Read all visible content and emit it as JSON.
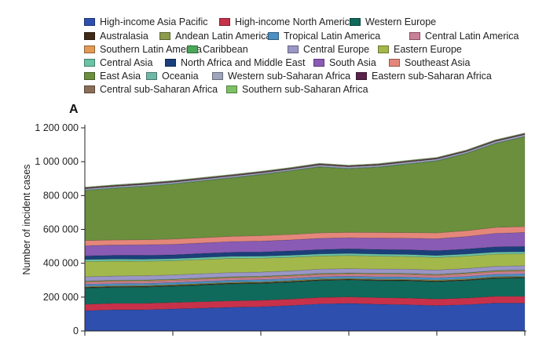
{
  "chart_data": {
    "type": "area",
    "stacked": true,
    "panel_label": "A",
    "ylabel": "Number of incident cases",
    "xlabel": "",
    "ylim": [
      0,
      1200000
    ],
    "yticks": [
      0,
      200000,
      400000,
      600000,
      800000,
      1000000,
      1200000
    ],
    "ytick_labels": [
      "0",
      "200 000",
      "400 000",
      "600 000",
      "800 000",
      "1 000 000",
      "1 200 000"
    ],
    "x_count": 16,
    "x_ticks_idx": [
      0,
      3,
      6,
      9,
      12,
      15
    ],
    "series": [
      {
        "name": "High-income Asia Pacific",
        "color": "#2e4fae",
        "values": [
          120000,
          125000,
          125000,
          130000,
          135000,
          140000,
          143000,
          150000,
          160000,
          163000,
          158000,
          155000,
          150000,
          155000,
          165000,
          165000
        ]
      },
      {
        "name": "High-income North America",
        "color": "#c8314a",
        "values": [
          38000,
          38000,
          38000,
          38000,
          38000,
          38000,
          38000,
          38000,
          38000,
          38000,
          39000,
          39000,
          39000,
          39000,
          40000,
          40000
        ]
      },
      {
        "name": "Western Europe",
        "color": "#0f6a5c",
        "values": [
          95000,
          95000,
          96000,
          96000,
          98000,
          100000,
          100000,
          100000,
          100000,
          100000,
          100000,
          102000,
          102000,
          104000,
          106000,
          108000
        ]
      },
      {
        "name": "Australasia",
        "color": "#3f2a17",
        "values": [
          5000,
          5000,
          5000,
          5000,
          5000,
          5000,
          5000,
          5000,
          5000,
          5000,
          5000,
          5000,
          5000,
          5000,
          5000,
          5000
        ]
      },
      {
        "name": "Andean Latin America",
        "color": "#8c9a4c",
        "values": [
          5000,
          5000,
          5000,
          5000,
          5000,
          5000,
          5000,
          5000,
          5000,
          5000,
          5000,
          5000,
          5000,
          5000,
          5000,
          5000
        ]
      },
      {
        "name": "Tropical Latin America",
        "color": "#4c90c4",
        "values": [
          12000,
          12000,
          12000,
          12000,
          12000,
          12000,
          12000,
          12000,
          12000,
          12000,
          13000,
          13000,
          13000,
          14000,
          14000,
          15000
        ]
      },
      {
        "name": "Central Latin America",
        "color": "#c97f96",
        "values": [
          12000,
          12000,
          12000,
          12000,
          12000,
          12000,
          12000,
          12000,
          12000,
          12000,
          13000,
          13000,
          13000,
          14000,
          14000,
          15000
        ]
      },
      {
        "name": "Southern Latin America",
        "color": "#e29a55",
        "values": [
          5000,
          5000,
          5000,
          5000,
          5000,
          5000,
          5000,
          5000,
          5000,
          5000,
          5000,
          5000,
          5000,
          5000,
          5000,
          5000
        ]
      },
      {
        "name": "Caribbean",
        "color": "#4aa858",
        "values": [
          3000,
          3000,
          3000,
          3000,
          3000,
          3000,
          3000,
          3000,
          3000,
          3000,
          3000,
          3000,
          3000,
          3000,
          3000,
          3000
        ]
      },
      {
        "name": "Central Europe",
        "color": "#9a96c6",
        "values": [
          25000,
          25000,
          25000,
          25000,
          25000,
          25000,
          25000,
          25000,
          25000,
          25000,
          25000,
          25000,
          25000,
          25000,
          25000,
          25000
        ]
      },
      {
        "name": "Eastern Europe",
        "color": "#a3b84b",
        "values": [
          90000,
          88000,
          86000,
          84000,
          84000,
          84000,
          82000,
          80000,
          78000,
          78000,
          76000,
          75000,
          74000,
          73000,
          72000,
          70000
        ]
      },
      {
        "name": "Central Asia",
        "color": "#69c3a4",
        "values": [
          12000,
          12000,
          12000,
          12000,
          12000,
          12000,
          12000,
          12000,
          12000,
          12000,
          12000,
          12000,
          12000,
          12000,
          12000,
          12000
        ]
      },
      {
        "name": "North Africa and Middle East",
        "color": "#1b3f7a",
        "values": [
          22000,
          22000,
          23000,
          23000,
          24000,
          24000,
          25000,
          26000,
          26000,
          27000,
          28000,
          28000,
          29000,
          30000,
          31000,
          32000
        ]
      },
      {
        "name": "South Asia",
        "color": "#8a5bb4",
        "values": [
          60000,
          61000,
          62000,
          62000,
          62000,
          63000,
          64000,
          65000,
          66000,
          66000,
          67000,
          68000,
          70000,
          74000,
          80000,
          82000
        ]
      },
      {
        "name": "Southeast Asia",
        "color": "#e4877a",
        "values": [
          30000,
          30000,
          30000,
          31000,
          31000,
          31000,
          32000,
          32000,
          32000,
          32000,
          33000,
          33000,
          34000,
          34000,
          35000,
          35000
        ]
      },
      {
        "name": "East Asia",
        "color": "#6b8f3c",
        "values": [
          295000,
          305000,
          315000,
          325000,
          335000,
          345000,
          360000,
          375000,
          390000,
          375000,
          385000,
          405000,
          425000,
          455000,
          495000,
          530000
        ]
      },
      {
        "name": "Oceania",
        "color": "#6fb8a8",
        "values": [
          3000,
          3000,
          3000,
          3000,
          3000,
          3000,
          3000,
          3000,
          3000,
          3000,
          3000,
          3000,
          3000,
          3000,
          3000,
          3000
        ]
      },
      {
        "name": "Western sub-Saharan Africa",
        "color": "#9fa5ba",
        "values": [
          8000,
          8000,
          8000,
          8000,
          8000,
          8000,
          8000,
          8000,
          9000,
          9000,
          9000,
          9000,
          9000,
          9000,
          10000,
          10000
        ]
      },
      {
        "name": "Eastern sub-Saharan Africa",
        "color": "#5a234a",
        "values": [
          4000,
          4000,
          4000,
          4000,
          4000,
          4000,
          4000,
          4000,
          4000,
          4000,
          4000,
          4000,
          4000,
          4000,
          4000,
          4000
        ]
      },
      {
        "name": "Central sub-Saharan Africa",
        "color": "#8a6e58",
        "values": [
          3000,
          3000,
          3000,
          3000,
          3000,
          3000,
          3000,
          3000,
          3000,
          3000,
          3000,
          3000,
          3000,
          3000,
          3000,
          3000
        ]
      },
      {
        "name": "Southern sub-Saharan Africa",
        "color": "#7ec064",
        "values": [
          3000,
          3000,
          3000,
          3000,
          3000,
          3000,
          3000,
          3000,
          3000,
          3000,
          3000,
          3000,
          3000,
          3000,
          3000,
          3000
        ]
      }
    ]
  }
}
